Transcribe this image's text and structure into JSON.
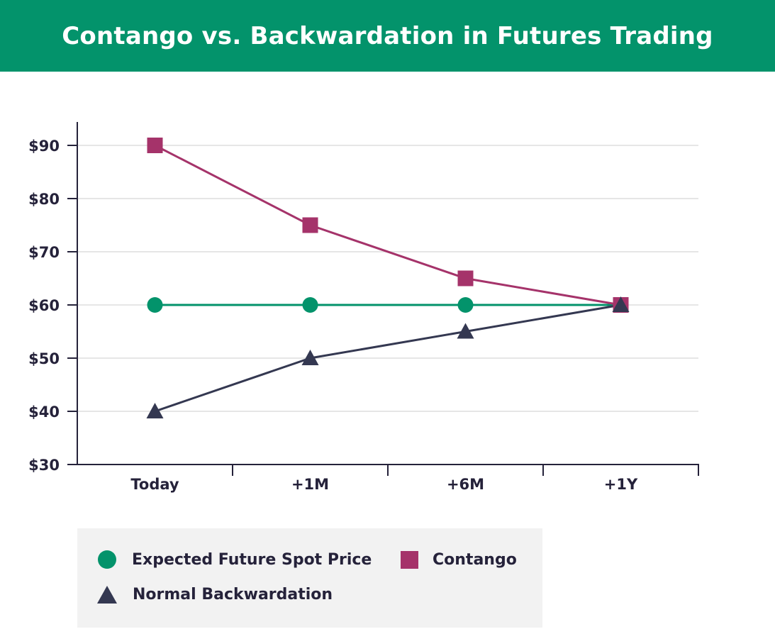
{
  "title": "Contango vs. Backwardation in Futures Trading",
  "colors": {
    "header_bg": "#03936b",
    "spot": "#03936b",
    "contango": "#a5336a",
    "backwardation": "#343851",
    "axis": "#25223a",
    "grid": "#e6e6e6"
  },
  "legend": {
    "spot_label": "Expected Future Spot Price",
    "contango_label": "Contango",
    "backwardation_label": "Normal Backwardation"
  },
  "chart_data": {
    "type": "line",
    "title": "Contango vs. Backwardation in Futures Trading",
    "xlabel": "",
    "ylabel": "",
    "categories": [
      "Today",
      "+1M",
      "+6M",
      "+1Y"
    ],
    "ylim": [
      30,
      90
    ],
    "y_ticks": [
      30,
      40,
      50,
      60,
      70,
      80,
      90
    ],
    "y_tick_labels": [
      "$30",
      "$40",
      "$50",
      "$60",
      "$70",
      "$80",
      "$90"
    ],
    "grid": true,
    "legend_position": "bottom",
    "series": [
      {
        "name": "Expected Future Spot Price",
        "marker": "circle",
        "color": "#03936b",
        "values": [
          60,
          60,
          60,
          60
        ]
      },
      {
        "name": "Contango",
        "marker": "square",
        "color": "#a5336a",
        "values": [
          90,
          75,
          65,
          60
        ]
      },
      {
        "name": "Normal Backwardation",
        "marker": "triangle",
        "color": "#343851",
        "values": [
          40,
          50,
          55,
          60
        ]
      }
    ]
  }
}
